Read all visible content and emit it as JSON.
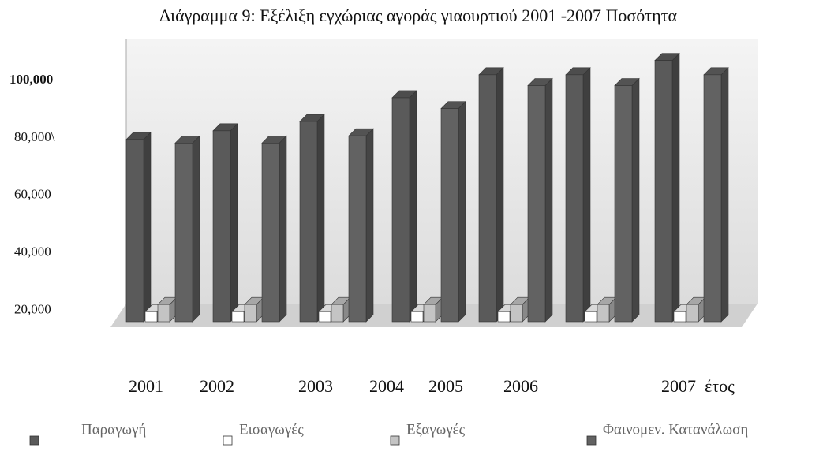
{
  "chart_data": {
    "type": "bar3d",
    "title": "Διάγραμμα 9: Εξέλιξη εγχώριας αγοράς γιαουρτιού 2001 -2007 Ποσότητα",
    "categories": [
      "2001",
      "2002",
      "2003",
      "2004",
      "2005",
      "2006",
      "2007"
    ],
    "x_label": "έτος",
    "series": [
      {
        "name": "Παραγωγή",
        "color": "#5a5a5a",
        "values": [
          79500,
          82500,
          85750,
          94000,
          102000,
          102000,
          107000
        ]
      },
      {
        "name": "Εισαγωγές",
        "color": "#ffffff",
        "values": [
          19500,
          19500,
          19500,
          19500,
          19500,
          19500,
          19500
        ]
      },
      {
        "name": "Εξαγωγές",
        "color": "#c4c4c4",
        "values": [
          22000,
          22000,
          22000,
          22000,
          22000,
          22000,
          22000
        ]
      },
      {
        "name": "Φαινομεν. Κατανάλωση",
        "color": "#626262",
        "values": [
          78250,
          78250,
          80750,
          90250,
          98250,
          98250,
          102000
        ]
      }
    ],
    "ylim": [
      16000,
      108000
    ],
    "yticks": [
      {
        "value": 100000,
        "label": "100,000"
      },
      {
        "value": 80000,
        "label": "80,000\\"
      },
      {
        "value": 60000,
        "label": "60,000"
      },
      {
        "value": 40000,
        "label": "40,000"
      },
      {
        "value": 20000,
        "label": "20,000"
      }
    ],
    "grid": false
  }
}
